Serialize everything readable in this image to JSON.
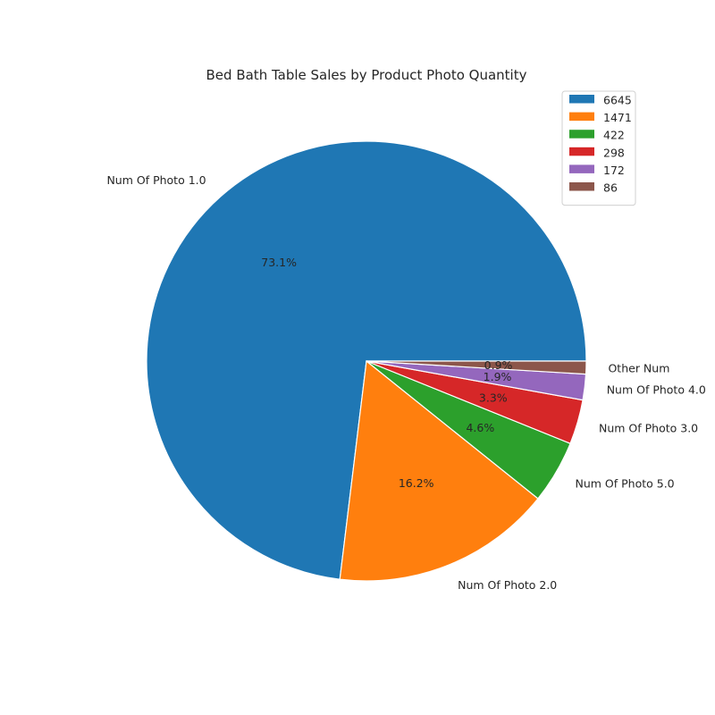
{
  "chart_data": {
    "type": "pie",
    "title": "Bed Bath Table Sales by Product Photo Quantity",
    "labels": [
      "Num Of Photo 1.0",
      "Num Of Photo 2.0",
      "Num Of Photo 5.0",
      "Num Of Photo 3.0",
      "Num Of Photo 4.0",
      "Other Num"
    ],
    "values": [
      6645,
      1471,
      422,
      298,
      172,
      86
    ],
    "percent_labels": [
      "73.1%",
      "16.2%",
      "4.6%",
      "3.3%",
      "1.9%",
      "0.9%"
    ],
    "colors": [
      "#1f77b4",
      "#ff7f0e",
      "#2ca02c",
      "#d62728",
      "#9467bd",
      "#8c564b"
    ],
    "legend": {
      "placement": "top-right",
      "entries": [
        "6645",
        "1471",
        "422",
        "298",
        "172",
        "86"
      ]
    },
    "start_angle_deg": 0,
    "direction": "counterclockwise"
  }
}
